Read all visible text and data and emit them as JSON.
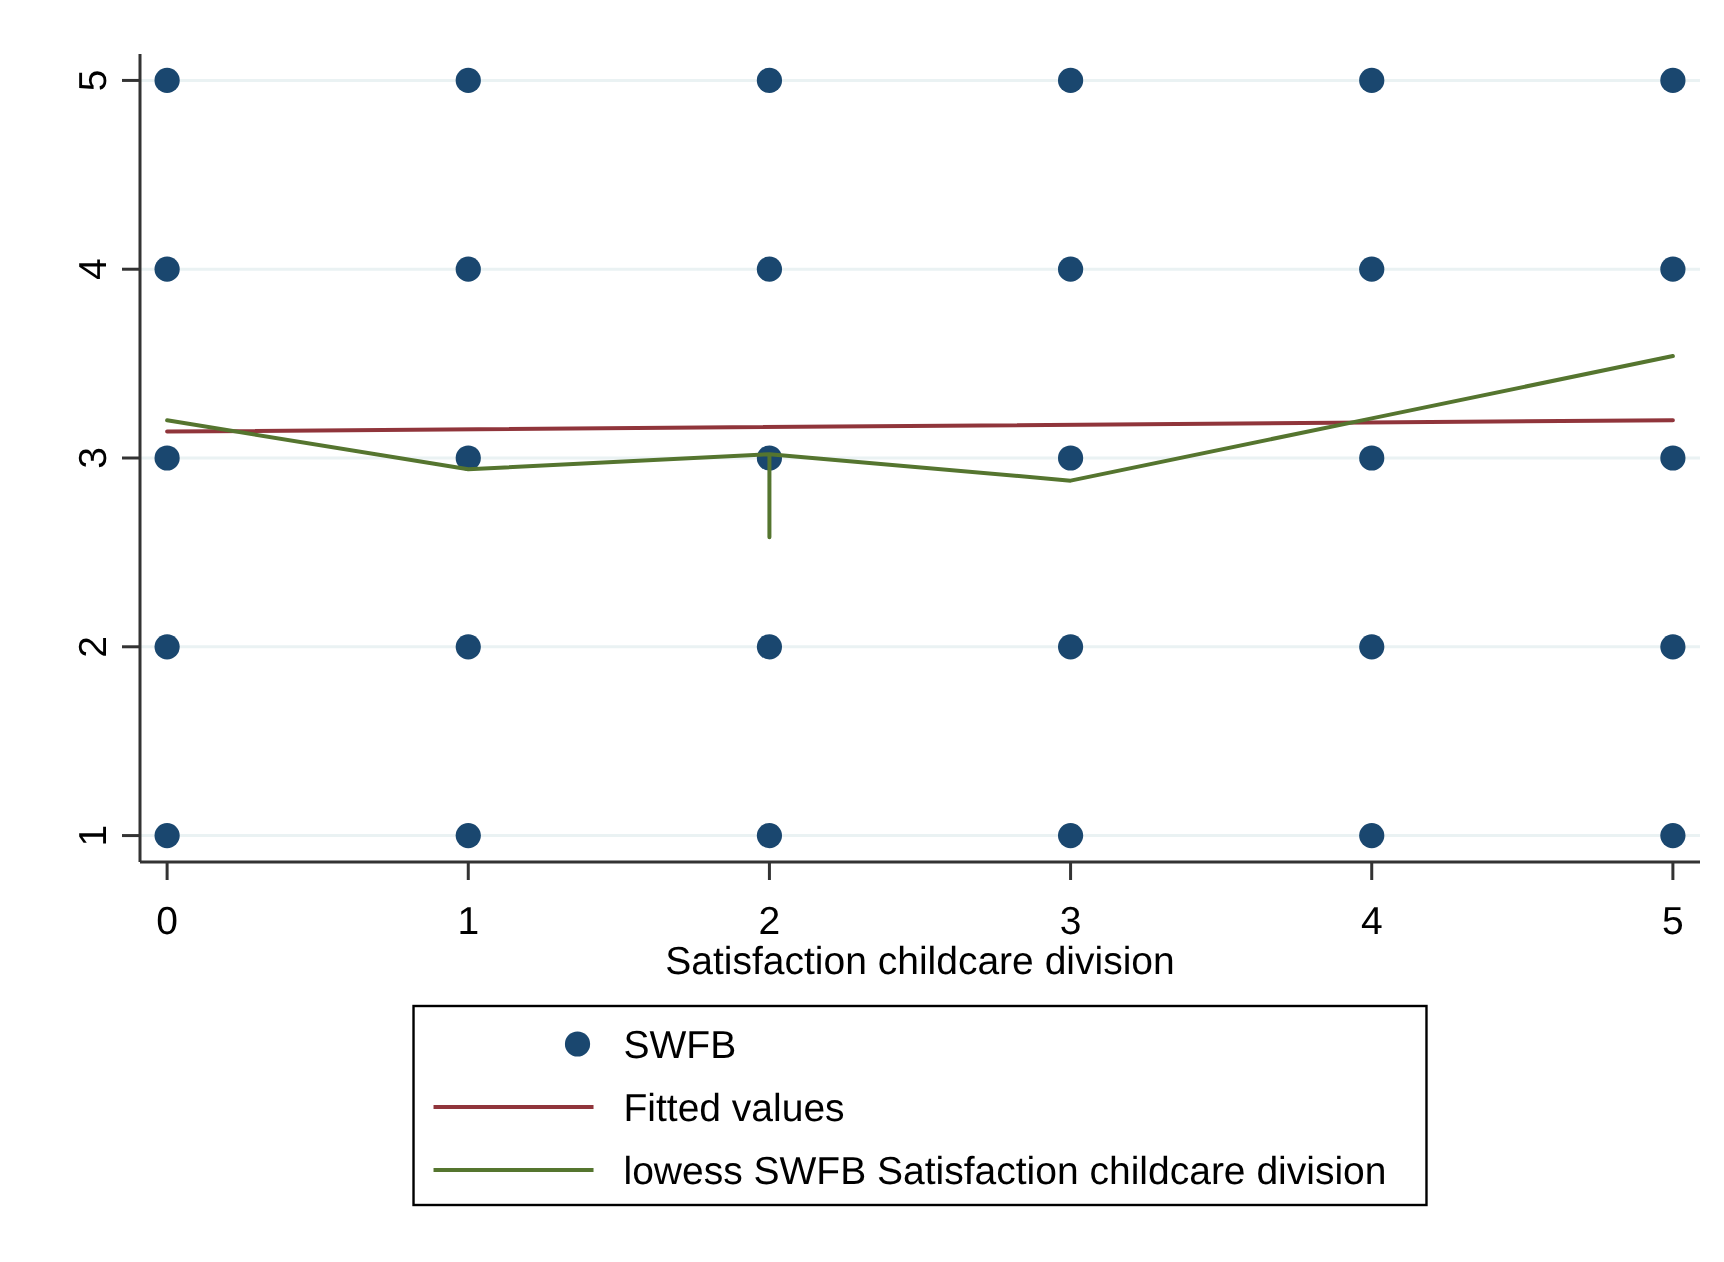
{
  "chart_data": {
    "type": "scatter",
    "xlabel": "Satisfaction childcare division",
    "xlim": [
      -0.09,
      5.09
    ],
    "xticks": [
      0,
      1,
      2,
      3,
      4,
      5
    ],
    "ylim": [
      0.86,
      5.14
    ],
    "yticks": [
      1,
      2,
      3,
      4,
      5
    ],
    "grid": "y",
    "legend": "bottom",
    "series": [
      {
        "name": "SWFB",
        "marker": "circle",
        "color": "#1a476f",
        "x": [
          0,
          0,
          0,
          0,
          0,
          1,
          1,
          1,
          1,
          1,
          2,
          2,
          2,
          2,
          2,
          3,
          3,
          3,
          3,
          3,
          4,
          4,
          4,
          4,
          4,
          5,
          5,
          5,
          5,
          5
        ],
        "values": [
          1,
          2,
          3,
          4,
          5,
          1,
          2,
          3,
          4,
          5,
          1,
          2,
          3,
          4,
          5,
          1,
          2,
          3,
          4,
          5,
          1,
          2,
          3,
          4,
          5,
          1,
          2,
          3,
          4,
          5
        ]
      },
      {
        "name": "Fitted values",
        "type": "line",
        "color": "#90353b",
        "x": [
          0,
          5
        ],
        "values": [
          3.14,
          3.2
        ]
      },
      {
        "name": "lowess SWFB Satisfaction childcare division",
        "type": "line",
        "color": "#55752f",
        "x": [
          0,
          1,
          2,
          2,
          2,
          3,
          4,
          5
        ],
        "values": [
          3.2,
          2.94,
          3.02,
          2.58,
          3.02,
          2.88,
          3.21,
          3.54
        ]
      }
    ]
  }
}
